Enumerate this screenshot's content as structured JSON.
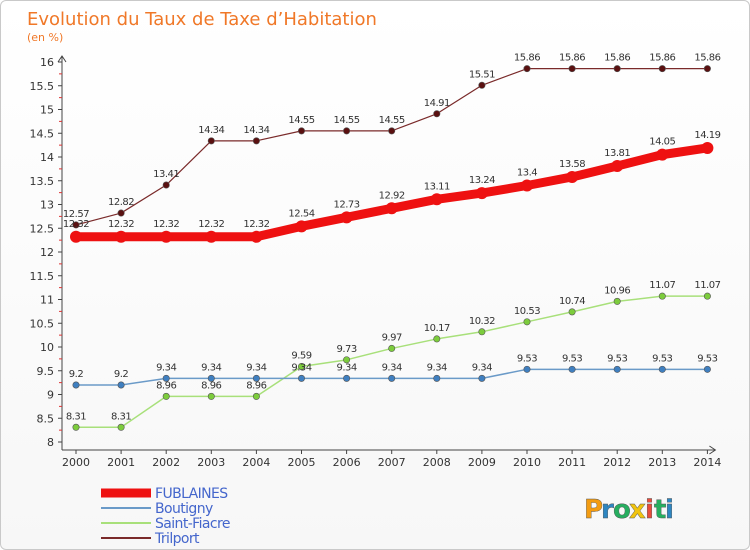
{
  "chart_data": {
    "type": "line",
    "title": "Evolution du Taux de Taxe d’Habitation",
    "ylabel": "(en %)",
    "xlabel": "",
    "ylim": [
      8,
      16
    ],
    "y_ticks": [
      "8",
      "8.5",
      "9",
      "9.5",
      "10",
      "10.5",
      "11",
      "11.5",
      "12",
      "12.5",
      "13",
      "13.5",
      "14",
      "14.5",
      "15",
      "15.5",
      "16"
    ],
    "categories": [
      "2000",
      "2001",
      "2002",
      "2003",
      "2004",
      "2005",
      "2006",
      "2007",
      "2008",
      "2009",
      "2010",
      "2011",
      "2012",
      "2013",
      "2014"
    ],
    "series": [
      {
        "name": "Trilport",
        "color": "#7a2a2a",
        "dot": "#5a1010",
        "values": [
          12.57,
          12.82,
          13.41,
          14.34,
          14.34,
          14.55,
          14.55,
          14.55,
          14.91,
          15.51,
          15.86,
          15.86,
          15.86,
          15.86,
          15.86
        ],
        "labels": [
          "12.57",
          "12.82",
          "13.41",
          "14.34",
          "14.34",
          "14.55",
          "14.55",
          "14.55",
          "14.91",
          "15.51",
          "15.86",
          "15.86",
          "15.86",
          "15.86",
          "15.86"
        ]
      },
      {
        "name": "Saint-Fiacre",
        "color": "#a8e07a",
        "dot": "#7ccc3c",
        "values": [
          8.31,
          8.31,
          8.96,
          8.96,
          8.96,
          9.59,
          9.73,
          9.97,
          10.17,
          10.32,
          10.53,
          10.74,
          10.96,
          11.07,
          11.07
        ],
        "labels": [
          "8.31",
          "8.31",
          "8.96",
          "8.96",
          "8.96",
          "9.59",
          "9.73",
          "9.97",
          "10.17",
          "10.32",
          "10.53",
          "10.74",
          "10.96",
          "11.07",
          "11.07"
        ]
      },
      {
        "name": "Boutigny",
        "color": "#6a9ac8",
        "dot": "#3f7fc0",
        "values": [
          9.2,
          9.2,
          9.34,
          9.34,
          9.34,
          9.34,
          9.34,
          9.34,
          9.34,
          9.34,
          9.53,
          9.53,
          9.53,
          9.53,
          9.53
        ],
        "labels": [
          "9.2",
          "9.2",
          "9.34",
          "9.34",
          "9.34",
          "9.34",
          "9.34",
          "9.34",
          "9.34",
          "9.34",
          "9.53",
          "9.53",
          "9.53",
          "9.53",
          "9.53"
        ]
      },
      {
        "name": "FUBLAINES",
        "color": "#ee1111",
        "dot": "#ee1111",
        "values": [
          12.32,
          12.32,
          12.32,
          12.32,
          12.32,
          12.54,
          12.73,
          12.92,
          13.11,
          13.24,
          13.4,
          13.58,
          13.81,
          14.05,
          14.19
        ],
        "labels": [
          "12.32",
          "12.32",
          "12.32",
          "12.32",
          "12.32",
          "12.54",
          "12.73",
          "12.92",
          "13.11",
          "13.24",
          "13.4",
          "13.58",
          "13.81",
          "14.05",
          "14.19"
        ]
      }
    ],
    "legend": [
      "FUBLAINES",
      "Boutigny",
      "Saint-Fiacre",
      "Trilport"
    ],
    "legend_position": "bottom-left",
    "grid": false
  },
  "brand": {
    "letters": [
      "P",
      "r",
      "o",
      "x",
      "i",
      "t",
      "i"
    ],
    "colors": [
      "#f39c12",
      "#2e86c1",
      "#27ae60",
      "#f1c40f",
      "#e74c3c",
      "#27ae60",
      "#2e86c1"
    ]
  }
}
